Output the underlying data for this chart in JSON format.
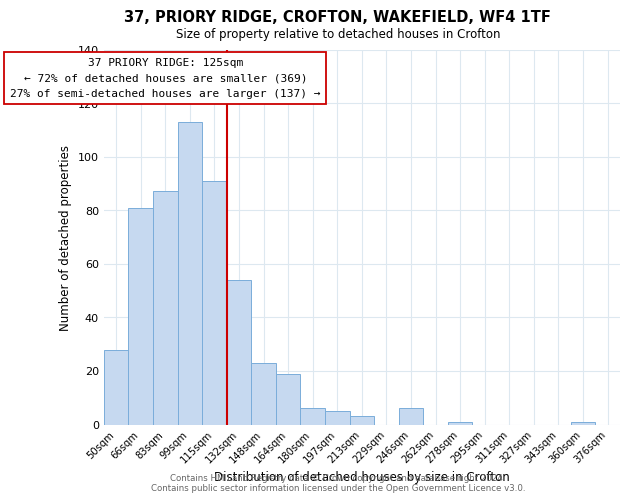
{
  "title": "37, PRIORY RIDGE, CROFTON, WAKEFIELD, WF4 1TF",
  "subtitle": "Size of property relative to detached houses in Crofton",
  "xlabel": "Distribution of detached houses by size in Crofton",
  "ylabel": "Number of detached properties",
  "bar_labels": [
    "50sqm",
    "66sqm",
    "83sqm",
    "99sqm",
    "115sqm",
    "132sqm",
    "148sqm",
    "164sqm",
    "180sqm",
    "197sqm",
    "213sqm",
    "229sqm",
    "246sqm",
    "262sqm",
    "278sqm",
    "295sqm",
    "311sqm",
    "327sqm",
    "343sqm",
    "360sqm",
    "376sqm"
  ],
  "bar_values": [
    28,
    81,
    87,
    113,
    91,
    54,
    23,
    19,
    6,
    5,
    3,
    0,
    6,
    0,
    1,
    0,
    0,
    0,
    0,
    1,
    0
  ],
  "bar_color": "#c6d9f0",
  "bar_edge_color": "#7aadda",
  "vline_color": "#cc0000",
  "annotation_title": "37 PRIORY RIDGE: 125sqm",
  "annotation_line1": "← 72% of detached houses are smaller (369)",
  "annotation_line2": "27% of semi-detached houses are larger (137) →",
  "annotation_box_color": "#ffffff",
  "annotation_box_edge": "#cc0000",
  "ylim": [
    0,
    140
  ],
  "yticks": [
    0,
    20,
    40,
    60,
    80,
    100,
    120,
    140
  ],
  "footer1": "Contains HM Land Registry data © Crown copyright and database right 2024.",
  "footer2": "Contains public sector information licensed under the Open Government Licence v3.0.",
  "background_color": "#ffffff",
  "grid_color": "#dde8f0"
}
